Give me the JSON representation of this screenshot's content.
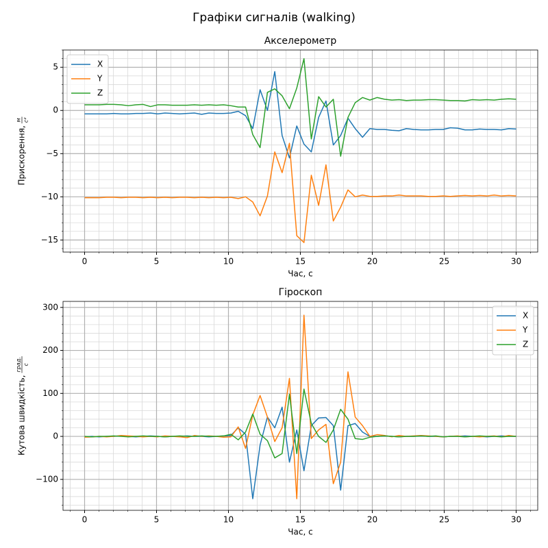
{
  "title": "Графіки сигналів (walking)",
  "chart_data": [
    {
      "type": "line",
      "title": "Акселерометр",
      "xlabel": "Час, с",
      "ylabel": {
        "text": "Прискорення,",
        "unit_numerator": "м",
        "unit_denominator": "c²"
      },
      "x": [
        0,
        0.51,
        1.02,
        1.53,
        2.03,
        2.54,
        3.05,
        3.56,
        4.07,
        4.58,
        5.08,
        5.59,
        6.1,
        6.61,
        7.12,
        7.63,
        8.14,
        8.64,
        9.15,
        9.66,
        10.17,
        10.68,
        11.19,
        11.69,
        12.2,
        12.71,
        13.22,
        13.73,
        14.24,
        14.75,
        15.25,
        15.76,
        16.27,
        16.78,
        17.29,
        17.8,
        18.31,
        18.81,
        19.32,
        19.83,
        20.34,
        20.85,
        21.36,
        21.86,
        22.37,
        22.88,
        23.39,
        23.9,
        24.41,
        24.92,
        25.42,
        25.93,
        26.44,
        26.95,
        27.46,
        27.97,
        28.47,
        28.98,
        29.49,
        30
      ],
      "series": [
        {
          "name": "X",
          "color": "#1f77b4",
          "values": [
            -0.4,
            -0.4,
            -0.4,
            -0.4,
            -0.35,
            -0.4,
            -0.4,
            -0.35,
            -0.35,
            -0.3,
            -0.4,
            -0.3,
            -0.35,
            -0.4,
            -0.35,
            -0.3,
            -0.45,
            -0.3,
            -0.35,
            -0.35,
            -0.3,
            -0.1,
            -0.6,
            -2.1,
            2.4,
            0.0,
            4.5,
            -2.9,
            -5.5,
            -1.8,
            -3.9,
            -4.8,
            -0.8,
            1.1,
            -4.0,
            -2.9,
            -0.9,
            -2.1,
            -3.1,
            -2.1,
            -2.2,
            -2.2,
            -2.3,
            -2.35,
            -2.1,
            -2.2,
            -2.25,
            -2.25,
            -2.2,
            -2.2,
            -2.0,
            -2.05,
            -2.25,
            -2.25,
            -2.15,
            -2.2,
            -2.2,
            -2.25,
            -2.1,
            -2.15
          ]
        },
        {
          "name": "Y",
          "color": "#ff7f0e",
          "values": [
            -10.1,
            -10.1,
            -10.1,
            -10.05,
            -10.05,
            -10.1,
            -10.05,
            -10.05,
            -10.1,
            -10.05,
            -10.1,
            -10.05,
            -10.1,
            -10.05,
            -10.05,
            -10.1,
            -10.05,
            -10.1,
            -10.05,
            -10.1,
            -10.05,
            -10.2,
            -10.0,
            -10.6,
            -12.2,
            -9.9,
            -4.8,
            -7.2,
            -3.8,
            -14.5,
            -15.3,
            -7.5,
            -11.0,
            -6.3,
            -12.8,
            -11.2,
            -9.2,
            -10.0,
            -9.8,
            -9.95,
            -9.95,
            -9.9,
            -9.9,
            -9.8,
            -9.9,
            -9.9,
            -9.9,
            -9.95,
            -9.95,
            -9.9,
            -9.95,
            -9.9,
            -9.85,
            -9.9,
            -9.85,
            -9.9,
            -9.8,
            -9.9,
            -9.85,
            -9.9
          ]
        },
        {
          "name": "Z",
          "color": "#2ca02c",
          "values": [
            0.65,
            0.65,
            0.65,
            0.7,
            0.7,
            0.65,
            0.55,
            0.65,
            0.7,
            0.45,
            0.65,
            0.65,
            0.6,
            0.6,
            0.6,
            0.65,
            0.6,
            0.65,
            0.6,
            0.65,
            0.55,
            0.4,
            0.4,
            -2.8,
            -4.3,
            2.1,
            2.5,
            1.7,
            0.2,
            2.6,
            6.0,
            -3.3,
            1.6,
            0.4,
            1.3,
            -5.3,
            -0.8,
            0.9,
            1.5,
            1.2,
            1.5,
            1.3,
            1.2,
            1.25,
            1.15,
            1.2,
            1.2,
            1.25,
            1.25,
            1.2,
            1.15,
            1.15,
            1.1,
            1.25,
            1.2,
            1.25,
            1.2,
            1.3,
            1.35,
            1.3
          ]
        }
      ],
      "xlim": [
        -1.5,
        31.5
      ],
      "ylim": [
        -16.4,
        7
      ],
      "xticks": [
        0,
        5,
        10,
        15,
        20,
        25,
        30
      ],
      "yticks": [
        {
          "value": -15,
          "label": "−15"
        },
        {
          "value": -10,
          "label": "−10"
        },
        {
          "value": -5,
          "label": "−5"
        },
        0,
        5
      ],
      "grid": true,
      "minor_grid": true,
      "legend": "upper left"
    },
    {
      "type": "line",
      "title": "Гіроскоп",
      "xlabel": "Час, с",
      "ylabel": {
        "text": "Кутова швидкість,",
        "unit_numerator": "град.",
        "unit_denominator": "c"
      },
      "x": [
        0,
        0.51,
        1.02,
        1.53,
        2.03,
        2.54,
        3.05,
        3.56,
        4.07,
        4.58,
        5.08,
        5.59,
        6.1,
        6.61,
        7.12,
        7.63,
        8.14,
        8.64,
        9.15,
        9.66,
        10.17,
        10.68,
        11.19,
        11.69,
        12.2,
        12.71,
        13.22,
        13.73,
        14.24,
        14.75,
        15.25,
        15.76,
        16.27,
        16.78,
        17.29,
        17.8,
        18.31,
        18.81,
        19.32,
        19.83,
        20.34,
        20.85,
        21.36,
        21.86,
        22.37,
        22.88,
        23.39,
        23.9,
        24.41,
        24.92,
        25.42,
        25.93,
        26.44,
        26.95,
        27.46,
        27.97,
        28.47,
        28.98,
        29.49,
        30
      ],
      "series": [
        {
          "name": "X",
          "color": "#1f77b4",
          "values": [
            -1,
            0,
            -1,
            0,
            0,
            1,
            0,
            -1,
            0,
            1,
            0,
            -1,
            0,
            0,
            1,
            0,
            0,
            -1,
            0,
            1,
            2,
            20,
            5,
            -145,
            -20,
            45,
            20,
            68,
            -60,
            15,
            -80,
            25,
            43,
            44,
            25,
            -125,
            25,
            30,
            10,
            0,
            0,
            1,
            0,
            -1,
            0,
            0,
            1,
            0,
            0,
            -1,
            0,
            0,
            1,
            0,
            0,
            -1,
            0,
            1,
            0,
            0
          ]
        },
        {
          "name": "Y",
          "color": "#ff7f0e",
          "values": [
            -2,
            -1,
            0,
            -1,
            0,
            2,
            1,
            0,
            -1,
            0,
            -1,
            1,
            0,
            -1,
            -3,
            2,
            0,
            1,
            0,
            -2,
            -1,
            22,
            -28,
            50,
            95,
            45,
            -12,
            20,
            135,
            -145,
            282,
            -5,
            15,
            28,
            -110,
            -60,
            150,
            45,
            25,
            0,
            4,
            2,
            -1,
            2,
            0,
            1,
            2,
            1,
            0,
            -1,
            0,
            1,
            -1,
            0,
            -1,
            0,
            1,
            -1,
            2,
            0
          ]
        },
        {
          "name": "Z",
          "color": "#2ca02c",
          "values": [
            0,
            -1,
            0,
            0,
            1,
            0,
            -1,
            0,
            1,
            0,
            0,
            -1,
            0,
            1,
            0,
            0,
            1,
            0,
            0,
            1,
            5,
            -8,
            10,
            52,
            5,
            -10,
            -50,
            -40,
            98,
            -40,
            110,
            30,
            0,
            -14,
            15,
            63,
            40,
            -5,
            -7,
            -2,
            0,
            1,
            0,
            -1,
            0,
            0,
            1,
            0,
            1,
            -1,
            0,
            0,
            -1,
            0,
            1,
            0,
            0,
            -1,
            0,
            0
          ]
        }
      ],
      "xlim": [
        -1.5,
        31.5
      ],
      "ylim": [
        -172,
        314
      ],
      "xticks": [
        0,
        5,
        10,
        15,
        20,
        25,
        30
      ],
      "yticks": [
        {
          "value": -100,
          "label": "−100"
        },
        0,
        100,
        200,
        300
      ],
      "grid": true,
      "minor_grid": true,
      "legend": "upper right"
    }
  ]
}
